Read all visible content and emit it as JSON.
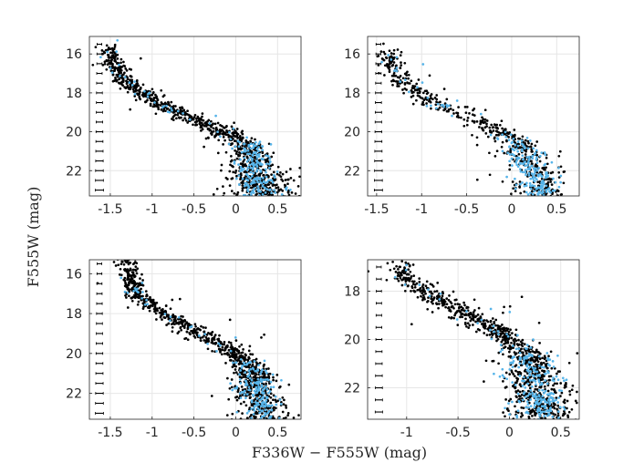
{
  "chart_data": {
    "type": "scatter",
    "xlabel": "F336W − F555W (mag)",
    "ylabel": "F555W (mag)",
    "colors": {
      "black": "#000000",
      "cyan": "#56b4e9",
      "errorbar": "#000000"
    },
    "panels": [
      {
        "name": "top-left",
        "xlim": [
          -1.75,
          0.78
        ],
        "ylim": [
          15.1,
          23.3
        ],
        "xticks": [
          -1.5,
          -1,
          -0.5,
          0,
          0.5
        ],
        "xtick_labels": [
          "-1.5",
          "-1",
          "-0.5",
          "0",
          "0.5"
        ],
        "yticks": [
          16,
          18,
          20,
          22
        ],
        "ytick_labels": [
          "16",
          "18",
          "20",
          "22"
        ],
        "errorbar_x": -1.63,
        "ridge": [
          [
            -1.5,
            16.2
          ],
          [
            -1.35,
            17.3
          ],
          [
            -1.0,
            18.4
          ],
          [
            -0.5,
            19.4
          ],
          [
            0.0,
            20.3
          ],
          [
            0.2,
            21.0
          ],
          [
            0.25,
            22.2
          ],
          [
            0.3,
            23.2
          ]
        ],
        "n_black": 950,
        "n_cyan": 230,
        "seed": 11
      },
      {
        "name": "top-right",
        "xlim": [
          -1.6,
          0.75
        ],
        "ylim": [
          15.1,
          23.3
        ],
        "xticks": [
          -1.5,
          -1,
          -0.5,
          0,
          0.5
        ],
        "xtick_labels": [
          "-1.5",
          "-1",
          "-0.5",
          "0",
          "0.5"
        ],
        "yticks": [
          16,
          18,
          20,
          22
        ],
        "ytick_labels": [
          "16",
          "18",
          "20",
          "22"
        ],
        "errorbar_x": -1.48,
        "ridge": [
          [
            -1.35,
            16.3
          ],
          [
            -1.2,
            17.5
          ],
          [
            -0.8,
            18.7
          ],
          [
            -0.3,
            19.6
          ],
          [
            0.05,
            20.5
          ],
          [
            0.2,
            21.3
          ],
          [
            0.28,
            22.3
          ],
          [
            0.35,
            23.2
          ]
        ],
        "n_black": 560,
        "n_cyan": 220,
        "seed": 23
      },
      {
        "name": "bottom-left",
        "xlim": [
          -1.75,
          0.78
        ],
        "ylim": [
          15.3,
          23.3
        ],
        "xticks": [
          -1.5,
          -1,
          -0.5,
          0,
          0.5
        ],
        "xtick_labels": [
          "-1.5",
          "-1",
          "-0.5",
          "0",
          "0.5"
        ],
        "yticks": [
          16,
          18,
          20,
          22
        ],
        "ytick_labels": [
          "16",
          "18",
          "20",
          "22"
        ],
        "errorbar_x": -1.63,
        "ridge": [
          [
            -1.3,
            15.7
          ],
          [
            -1.2,
            17.0
          ],
          [
            -0.8,
            18.2
          ],
          [
            -0.3,
            19.3
          ],
          [
            0.05,
            20.1
          ],
          [
            0.2,
            20.9
          ],
          [
            0.28,
            22.2
          ],
          [
            0.35,
            23.2
          ]
        ],
        "n_black": 1000,
        "n_cyan": 210,
        "seed": 37
      },
      {
        "name": "bottom-right",
        "xlim": [
          -1.38,
          0.68
        ],
        "ylim": [
          16.7,
          23.3
        ],
        "xticks": [
          -1,
          -0.5,
          0,
          0.5
        ],
        "xtick_labels": [
          "-1",
          "-0.5",
          "0",
          "0.5"
        ],
        "yticks": [
          18,
          20,
          22
        ],
        "ytick_labels": [
          "18",
          "20",
          "22"
        ],
        "errorbar_x": -1.27,
        "ridge": [
          [
            -1.05,
            17.4
          ],
          [
            -0.8,
            18.1
          ],
          [
            -0.45,
            18.9
          ],
          [
            -0.1,
            19.7
          ],
          [
            0.1,
            20.3
          ],
          [
            0.22,
            21.1
          ],
          [
            0.28,
            22.3
          ],
          [
            0.33,
            23.2
          ]
        ],
        "n_black": 950,
        "n_cyan": 260,
        "seed": 53
      }
    ]
  }
}
